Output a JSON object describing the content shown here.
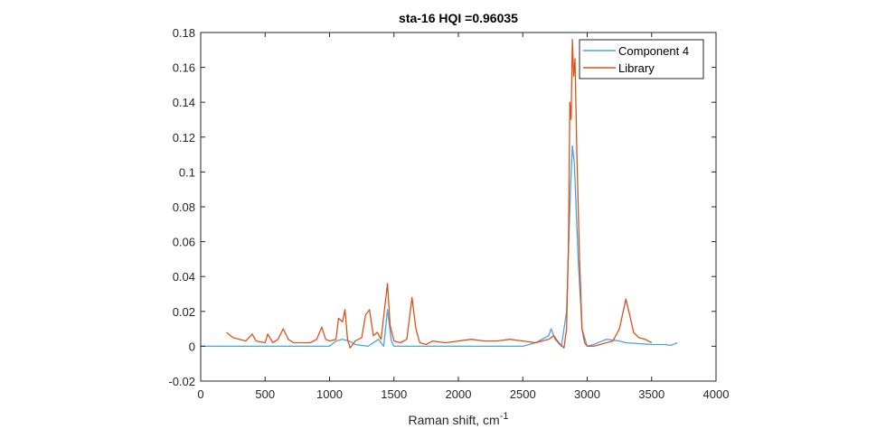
{
  "chart_data": {
    "type": "line",
    "title": "sta-16 HQI =0.96035",
    "xlabel": "Raman shift, cm",
    "xlabel_superscript": "-1",
    "ylabel": "",
    "xlim": [
      0,
      4000
    ],
    "ylim": [
      -0.02,
      0.18
    ],
    "xticks": [
      0,
      500,
      1000,
      1500,
      2000,
      2500,
      3000,
      3500,
      4000
    ],
    "xtick_labels": [
      "0",
      "500",
      "1000",
      "1500",
      "2000",
      "2500",
      "3000",
      "3500",
      "4000"
    ],
    "yticks": [
      -0.02,
      0,
      0.02,
      0.04,
      0.06,
      0.08,
      0.1,
      0.12,
      0.14,
      0.16,
      0.18
    ],
    "ytick_labels": [
      "-0.02",
      "0",
      "0.02",
      "0.04",
      "0.06",
      "0.08",
      "0.1",
      "0.12",
      "0.14",
      "0.16",
      "0.18"
    ],
    "grid": false,
    "legend_position": "top-right",
    "series": [
      {
        "name": "Component 4",
        "color": "#4aa3df",
        "points": [
          [
            0,
            0
          ],
          [
            500,
            0
          ],
          [
            1000,
            0
          ],
          [
            1050,
            0.003
          ],
          [
            1100,
            0.004
          ],
          [
            1150,
            0.003
          ],
          [
            1200,
            0.001
          ],
          [
            1300,
            0
          ],
          [
            1380,
            0.004
          ],
          [
            1420,
            0
          ],
          [
            1450,
            0.021
          ],
          [
            1480,
            0.003
          ],
          [
            1500,
            0
          ],
          [
            1700,
            0
          ],
          [
            2000,
            0
          ],
          [
            2500,
            0
          ],
          [
            2600,
            0.002
          ],
          [
            2700,
            0.006
          ],
          [
            2720,
            0.01
          ],
          [
            2750,
            0.004
          ],
          [
            2800,
            0
          ],
          [
            2840,
            0.02
          ],
          [
            2870,
            0.09
          ],
          [
            2885,
            0.115
          ],
          [
            2900,
            0.105
          ],
          [
            2930,
            0.05
          ],
          [
            2960,
            0.01
          ],
          [
            3000,
            0
          ],
          [
            3050,
            0.001
          ],
          [
            3150,
            0.004
          ],
          [
            3250,
            0.003
          ],
          [
            3300,
            0.002
          ],
          [
            3500,
            0.001
          ],
          [
            3600,
            0.001
          ],
          [
            3650,
            0.0005
          ],
          [
            3700,
            0.002
          ]
        ]
      },
      {
        "name": "Library",
        "color": "#d95319",
        "points": [
          [
            200,
            0.008
          ],
          [
            250,
            0.005
          ],
          [
            300,
            0.004
          ],
          [
            350,
            0.003
          ],
          [
            400,
            0.007
          ],
          [
            430,
            0.003
          ],
          [
            500,
            0.002
          ],
          [
            520,
            0.007
          ],
          [
            560,
            0.002
          ],
          [
            600,
            0.004
          ],
          [
            640,
            0.01
          ],
          [
            680,
            0.004
          ],
          [
            720,
            0.002
          ],
          [
            800,
            0.002
          ],
          [
            850,
            0.002
          ],
          [
            900,
            0.004
          ],
          [
            940,
            0.011
          ],
          [
            970,
            0.004
          ],
          [
            1000,
            0.003
          ],
          [
            1050,
            0.004
          ],
          [
            1070,
            0.016
          ],
          [
            1100,
            0.014
          ],
          [
            1120,
            0.021
          ],
          [
            1140,
            0.004
          ],
          [
            1160,
            -0.001
          ],
          [
            1200,
            0.003
          ],
          [
            1250,
            0.005
          ],
          [
            1280,
            0.018
          ],
          [
            1310,
            0.021
          ],
          [
            1340,
            0.006
          ],
          [
            1370,
            0.008
          ],
          [
            1400,
            0.004
          ],
          [
            1450,
            0.036
          ],
          [
            1470,
            0.012
          ],
          [
            1500,
            0.003
          ],
          [
            1550,
            0.002
          ],
          [
            1600,
            0.004
          ],
          [
            1640,
            0.028
          ],
          [
            1670,
            0.01
          ],
          [
            1700,
            0.002
          ],
          [
            1750,
            0.001
          ],
          [
            1800,
            0.003
          ],
          [
            1900,
            0.002
          ],
          [
            2000,
            0.003
          ],
          [
            2100,
            0.004
          ],
          [
            2200,
            0.003
          ],
          [
            2300,
            0.003
          ],
          [
            2400,
            0.004
          ],
          [
            2500,
            0.003
          ],
          [
            2600,
            0.002
          ],
          [
            2700,
            0.004
          ],
          [
            2740,
            0.006
          ],
          [
            2780,
            0.002
          ],
          [
            2820,
            -0.001
          ],
          [
            2840,
            0.01
          ],
          [
            2855,
            0.06
          ],
          [
            2865,
            0.14
          ],
          [
            2875,
            0.13
          ],
          [
            2885,
            0.176
          ],
          [
            2895,
            0.155
          ],
          [
            2905,
            0.165
          ],
          [
            2920,
            0.11
          ],
          [
            2940,
            0.05
          ],
          [
            2960,
            0.01
          ],
          [
            2980,
            0.002
          ],
          [
            3000,
            0
          ],
          [
            3050,
            0
          ],
          [
            3100,
            0.001
          ],
          [
            3150,
            0.002
          ],
          [
            3200,
            0.003
          ],
          [
            3250,
            0.01
          ],
          [
            3300,
            0.027
          ],
          [
            3330,
            0.018
          ],
          [
            3360,
            0.008
          ],
          [
            3400,
            0.005
          ],
          [
            3450,
            0.004
          ],
          [
            3500,
            0.002
          ]
        ]
      }
    ]
  }
}
